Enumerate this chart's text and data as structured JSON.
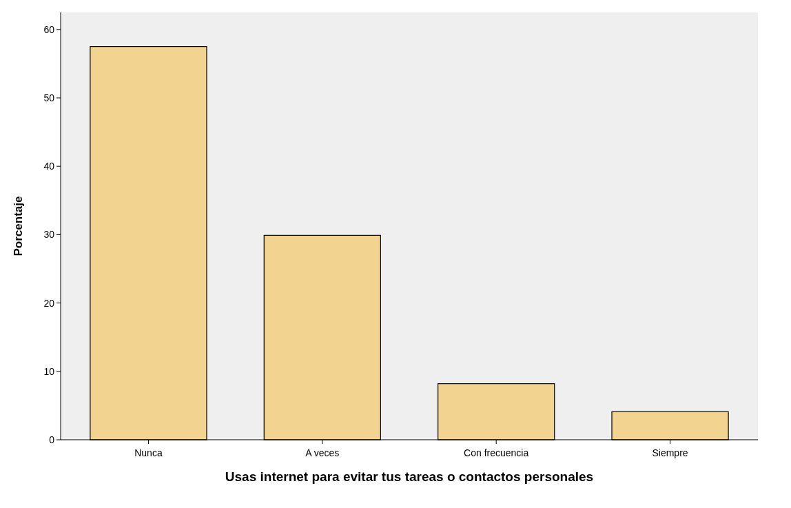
{
  "chart_data": {
    "type": "bar",
    "xlabel": "Usas internet para evitar tus tareas o contactos personales",
    "ylabel": "Porcentaje",
    "categories": [
      "Nunca",
      "A veces",
      "Con frecuencia",
      "Siempre"
    ],
    "values": [
      57.5,
      29.9,
      8.2,
      4.1
    ],
    "color": "#f2d38f",
    "ylim": [
      0,
      62.5
    ],
    "yticks": [
      0,
      10,
      20,
      30,
      40,
      50,
      60
    ],
    "grid": false
  }
}
